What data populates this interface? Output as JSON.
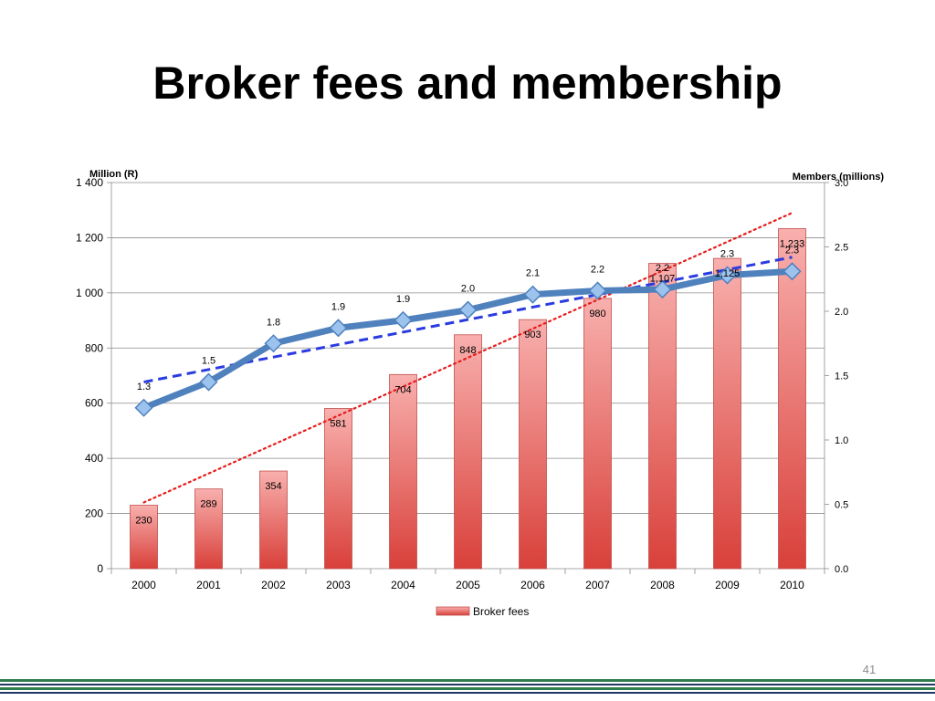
{
  "slide": {
    "title": "Broker fees and membership",
    "page_number": "41"
  },
  "colors": {
    "bar_top": "#f8b0ae",
    "bar_bottom": "#d9403a",
    "bar_edge": "#c0504d",
    "line": "#4f81bd",
    "marker": "#9cc2ee",
    "line_trend": "#2a3be0",
    "bar_trend": "#e81c1c",
    "footer_green": "#2e7d4f",
    "footer_navy": "#1f3864"
  },
  "chart_data": {
    "type": "bar",
    "categories": [
      "2000",
      "2001",
      "2002",
      "2003",
      "2004",
      "2005",
      "2006",
      "2007",
      "2008",
      "2009",
      "2010"
    ],
    "y_left": {
      "label": "Million (R)",
      "range": [
        0,
        1400
      ],
      "ticks": [
        0,
        200,
        400,
        600,
        800,
        1000,
        1200,
        1400
      ],
      "tick_labels": [
        "0",
        "200",
        "400",
        "600",
        "800",
        "1 000",
        "1 200",
        "1 400"
      ]
    },
    "y_right": {
      "label": "Members (millions)",
      "range": [
        0,
        3.0
      ],
      "ticks": [
        0,
        0.5,
        1.0,
        1.5,
        2.0,
        2.5,
        3.0
      ],
      "tick_labels": [
        "0.0",
        "0.5",
        "1.0",
        "1.5",
        "2.0",
        "2.5",
        "3.0"
      ]
    },
    "series": [
      {
        "name": "Broker fees",
        "type": "bar",
        "axis": "left",
        "values": [
          230,
          289,
          354,
          581,
          704,
          848,
          903,
          980,
          1107,
          1125,
          1233
        ],
        "labels": [
          "230",
          "289",
          "354",
          "581",
          "704",
          "848",
          "903",
          "980",
          "1,107",
          "1,125",
          "1,233"
        ]
      },
      {
        "type": "line",
        "axis": "right",
        "values": [
          1.25,
          1.45,
          1.75,
          1.87,
          1.93,
          2.01,
          2.13,
          2.16,
          2.17,
          2.28,
          2.31
        ],
        "labels": [
          "1.3",
          "1.5",
          "1.8",
          "1.9",
          "1.9",
          "2.0",
          "2.1",
          "2.2",
          "2.2",
          "2.3",
          "2.3"
        ]
      }
    ],
    "trendlines": [
      {
        "of": "Broker fees",
        "axis": "left",
        "style": "dotted",
        "start": 240,
        "end": 1290
      },
      {
        "of": "line",
        "axis": "right",
        "style": "dashed",
        "start": 1.45,
        "end": 2.42
      }
    ],
    "legend": {
      "position": "bottom",
      "entries": [
        "Broker fees"
      ]
    },
    "grid": "horizontal major (left axis)"
  }
}
